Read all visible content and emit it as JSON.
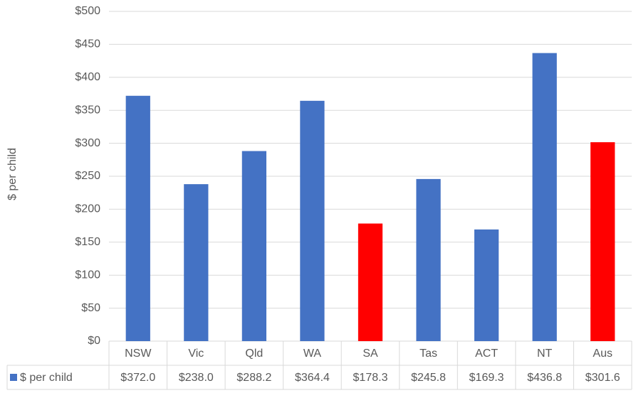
{
  "chart_data": {
    "type": "bar",
    "y_label": "$ per child",
    "categories": [
      "NSW",
      "Vic",
      "Qld",
      "WA",
      "SA",
      "Tas",
      "ACT",
      "NT",
      "Aus"
    ],
    "series": [
      {
        "name": "$ per child",
        "color": "#4472c4",
        "point_colors": [
          "#4472c4",
          "#4472c4",
          "#4472c4",
          "#4472c4",
          "#ff0000",
          "#4472c4",
          "#4472c4",
          "#4472c4",
          "#ff0000"
        ],
        "values": [
          372.0,
          238.0,
          288.2,
          364.4,
          178.3,
          245.8,
          169.3,
          436.8,
          301.6
        ],
        "value_labels": [
          "$372.0",
          "$238.0",
          "$288.2",
          "$364.4",
          "$178.3",
          "$245.8",
          "$169.3",
          "$436.8",
          "$301.6"
        ]
      }
    ],
    "ylim": [
      0,
      500
    ],
    "yticks": [
      {
        "value": 0,
        "label": "$0"
      },
      {
        "value": 50,
        "label": "$50"
      },
      {
        "value": 100,
        "label": "$100"
      },
      {
        "value": 150,
        "label": "$150"
      },
      {
        "value": 200,
        "label": "$200"
      },
      {
        "value": 250,
        "label": "$250"
      },
      {
        "value": 300,
        "label": "$300"
      },
      {
        "value": 350,
        "label": "$350"
      },
      {
        "value": 400,
        "label": "$400"
      },
      {
        "value": 450,
        "label": "$450"
      },
      {
        "value": 500,
        "label": "$500"
      }
    ],
    "grid": true,
    "data_table": true
  }
}
